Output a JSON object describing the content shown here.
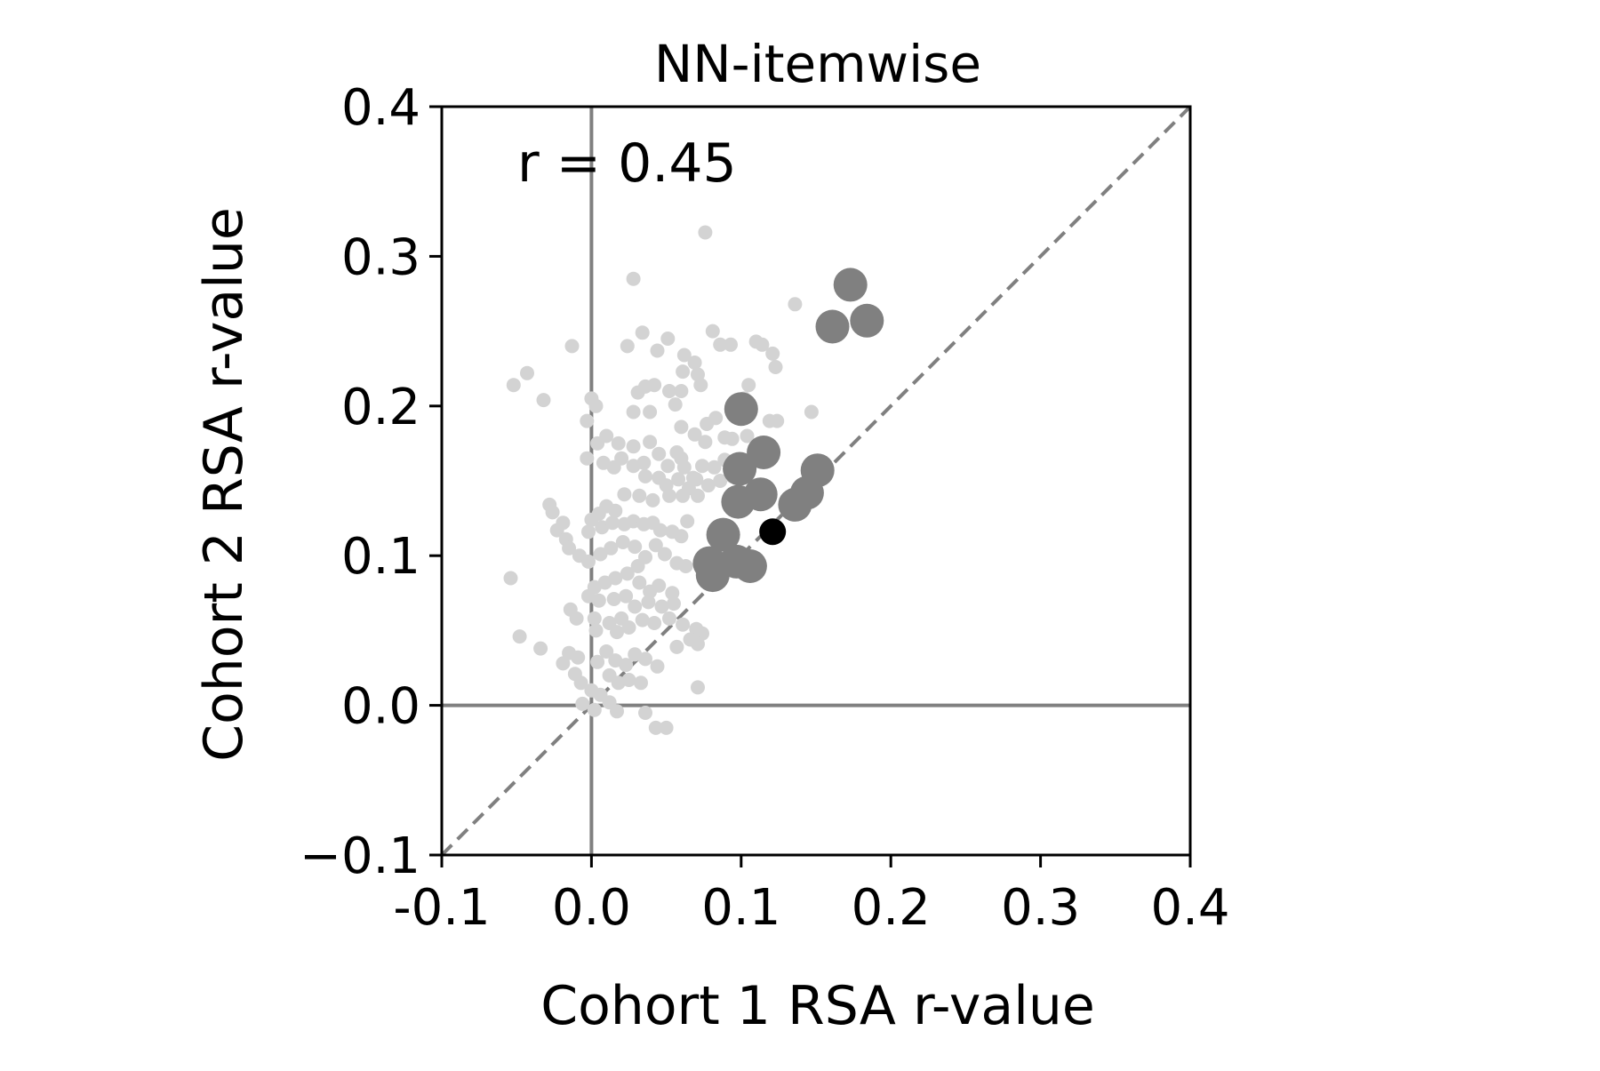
{
  "chart_data": {
    "type": "scatter",
    "title": "NN-itemwise",
    "xlabel": "Cohort 1 RSA r-value",
    "ylabel": "Cohort 2 RSA r-value",
    "xlim": [
      -0.1,
      0.4
    ],
    "ylim": [
      -0.1,
      0.4
    ],
    "x_ticks": [
      "-0.1",
      "0.0",
      "0.1",
      "0.2",
      "0.3",
      "0.4"
    ],
    "y_ticks": [
      "−0.1",
      "0.0",
      "0.1",
      "0.2",
      "0.3",
      "0.4"
    ],
    "annotation": "r = 0.45",
    "grid": false,
    "reference_lines": [
      "x = 0",
      "y = 0",
      "y = x (dashed)"
    ],
    "colors": {
      "background_points": "#d3d3d3",
      "highlight_points": "#808080",
      "focus_point": "#000000",
      "reference_lines": "#808080"
    },
    "series": [
      {
        "color": "#d3d3d3",
        "points": [
          [
            -0.052,
            0.214
          ],
          [
            -0.043,
            0.222
          ],
          [
            -0.032,
            0.204
          ],
          [
            -0.013,
            0.24
          ],
          [
            0.0,
            0.205
          ],
          [
            0.003,
            0.2
          ],
          [
            -0.003,
            0.19
          ],
          [
            0.024,
            0.24
          ],
          [
            0.034,
            0.249
          ],
          [
            0.028,
            0.285
          ],
          [
            0.044,
            0.237
          ],
          [
            0.051,
            0.245
          ],
          [
            0.062,
            0.234
          ],
          [
            0.069,
            0.229
          ],
          [
            0.076,
            0.316
          ],
          [
            0.081,
            0.25
          ],
          [
            0.086,
            0.241
          ],
          [
            0.093,
            0.241
          ],
          [
            0.11,
            0.243
          ],
          [
            0.114,
            0.241
          ],
          [
            0.121,
            0.235
          ],
          [
            0.123,
            0.226
          ],
          [
            0.136,
            0.268
          ],
          [
            0.147,
            0.196
          ],
          [
            0.102,
            0.205
          ],
          [
            0.105,
            0.214
          ],
          [
            0.096,
            0.2
          ],
          [
            0.119,
            0.19
          ],
          [
            0.124,
            0.19
          ],
          [
            0.073,
            0.214
          ],
          [
            0.071,
            0.221
          ],
          [
            0.061,
            0.223
          ],
          [
            0.056,
            0.201
          ],
          [
            0.052,
            0.21
          ],
          [
            0.042,
            0.214
          ],
          [
            0.036,
            0.213
          ],
          [
            0.031,
            0.209
          ],
          [
            0.028,
            0.196
          ],
          [
            0.039,
            0.196
          ],
          [
            0.06,
            0.21
          ],
          [
            0.083,
            0.192
          ],
          [
            0.077,
            0.188
          ],
          [
            0.06,
            0.186
          ],
          [
            0.069,
            0.181
          ],
          [
            0.076,
            0.176
          ],
          [
            0.089,
            0.179
          ],
          [
            0.094,
            0.178
          ],
          [
            0.045,
            0.168
          ],
          [
            0.057,
            0.169
          ],
          [
            0.051,
            0.16
          ],
          [
            0.062,
            0.159
          ],
          [
            0.068,
            0.152
          ],
          [
            0.074,
            0.16
          ],
          [
            0.082,
            0.159
          ],
          [
            0.089,
            0.164
          ],
          [
            0.094,
            0.153
          ],
          [
            0.039,
            0.176
          ],
          [
            0.035,
            0.162
          ],
          [
            0.028,
            0.173
          ],
          [
            0.018,
            0.175
          ],
          [
            0.01,
            0.18
          ],
          [
            0.004,
            0.175
          ],
          [
            -0.003,
            0.165
          ],
          [
            0.008,
            0.162
          ],
          [
            0.015,
            0.159
          ],
          [
            0.02,
            0.165
          ],
          [
            0.028,
            0.16
          ],
          [
            0.036,
            0.153
          ],
          [
            0.045,
            0.152
          ],
          [
            0.05,
            0.147
          ],
          [
            0.058,
            0.151
          ],
          [
            0.065,
            0.145
          ],
          [
            0.07,
            0.151
          ],
          [
            0.078,
            0.147
          ],
          [
            0.086,
            0.15
          ],
          [
            0.071,
            0.14
          ],
          [
            0.061,
            0.14
          ],
          [
            0.052,
            0.14
          ],
          [
            0.041,
            0.137
          ],
          [
            0.032,
            0.14
          ],
          [
            0.022,
            0.141
          ],
          [
            0.016,
            0.13
          ],
          [
            0.01,
            0.133
          ],
          [
            0.005,
            0.128
          ],
          [
            0.0,
            0.124
          ],
          [
            -0.002,
            0.116
          ],
          [
            0.007,
            0.119
          ],
          [
            0.014,
            0.122
          ],
          [
            0.022,
            0.121
          ],
          [
            0.028,
            0.123
          ],
          [
            0.035,
            0.121
          ],
          [
            0.041,
            0.122
          ],
          [
            0.046,
            0.117
          ],
          [
            0.054,
            0.116
          ],
          [
            0.06,
            0.113
          ],
          [
            0.064,
            0.123
          ],
          [
            -0.019,
            0.122
          ],
          [
            -0.026,
            0.129
          ],
          [
            -0.028,
            0.134
          ],
          [
            -0.023,
            0.117
          ],
          [
            -0.017,
            0.111
          ],
          [
            -0.015,
            0.105
          ],
          [
            -0.008,
            0.1
          ],
          [
            -0.002,
            0.096
          ],
          [
            0.006,
            0.101
          ],
          [
            0.013,
            0.105
          ],
          [
            0.021,
            0.109
          ],
          [
            0.029,
            0.106
          ],
          [
            0.036,
            0.099
          ],
          [
            0.043,
            0.107
          ],
          [
            0.049,
            0.101
          ],
          [
            0.057,
            0.095
          ],
          [
            0.063,
            0.093
          ],
          [
            0.031,
            0.093
          ],
          [
            0.024,
            0.088
          ],
          [
            0.016,
            0.085
          ],
          [
            0.009,
            0.082
          ],
          [
            0.002,
            0.079
          ],
          [
            -0.002,
            0.073
          ],
          [
            0.005,
            0.07
          ],
          [
            0.015,
            0.071
          ],
          [
            0.023,
            0.073
          ],
          [
            0.032,
            0.082
          ],
          [
            0.039,
            0.076
          ],
          [
            0.045,
            0.08
          ],
          [
            0.054,
            0.075
          ],
          [
            0.055,
            0.068
          ],
          [
            0.047,
            0.066
          ],
          [
            0.038,
            0.069
          ],
          [
            0.029,
            0.066
          ],
          [
            0.02,
            0.058
          ],
          [
            0.012,
            0.055
          ],
          [
            0.002,
            0.058
          ],
          [
            0.003,
            0.05
          ],
          [
            0.017,
            0.049
          ],
          [
            0.025,
            0.052
          ],
          [
            0.034,
            0.057
          ],
          [
            0.042,
            0.055
          ],
          [
            0.052,
            0.058
          ],
          [
            0.061,
            0.054
          ],
          [
            0.07,
            0.051
          ],
          [
            0.074,
            0.048
          ],
          [
            0.071,
            0.041
          ],
          [
            0.066,
            0.044
          ],
          [
            0.057,
            0.039
          ],
          [
            -0.014,
            0.064
          ],
          [
            -0.01,
            0.058
          ],
          [
            -0.048,
            0.046
          ],
          [
            -0.034,
            0.038
          ],
          [
            -0.015,
            0.035
          ],
          [
            -0.009,
            0.032
          ],
          [
            -0.019,
            0.028
          ],
          [
            -0.011,
            0.021
          ],
          [
            -0.007,
            0.015
          ],
          [
            0.0,
            0.01
          ],
          [
            0.004,
            0.029
          ],
          [
            0.01,
            0.036
          ],
          [
            0.016,
            0.03
          ],
          [
            0.023,
            0.027
          ],
          [
            0.029,
            0.034
          ],
          [
            0.036,
            0.031
          ],
          [
            0.044,
            0.026
          ],
          [
            0.012,
            0.02
          ],
          [
            0.018,
            0.015
          ],
          [
            0.025,
            0.017
          ],
          [
            0.033,
            0.015
          ],
          [
            0.006,
            0.007
          ],
          [
            0.012,
            0.002
          ],
          [
            0.017,
            -0.004
          ],
          [
            0.002,
            -0.003
          ],
          [
            -0.006,
            0.001
          ],
          [
            0.036,
            -0.005
          ],
          [
            0.043,
            -0.015
          ],
          [
            0.05,
            -0.015
          ],
          [
            0.071,
            0.012
          ],
          [
            -0.054,
            0.085
          ],
          [
            0.06,
            0.165
          ],
          [
            0.104,
            0.18
          ]
        ]
      },
      {
        "color": "#808080",
        "points": [
          [
            0.173,
            0.281
          ],
          [
            0.184,
            0.257
          ],
          [
            0.161,
            0.253
          ],
          [
            0.1,
            0.198
          ],
          [
            0.115,
            0.169
          ],
          [
            0.151,
            0.157
          ],
          [
            0.099,
            0.158
          ],
          [
            0.113,
            0.141
          ],
          [
            0.098,
            0.136
          ],
          [
            0.144,
            0.142
          ],
          [
            0.136,
            0.134
          ],
          [
            0.088,
            0.114
          ],
          [
            0.079,
            0.095
          ],
          [
            0.097,
            0.096
          ],
          [
            0.106,
            0.093
          ],
          [
            0.081,
            0.087
          ]
        ]
      },
      {
        "color": "#000000",
        "points": [
          [
            0.121,
            0.116
          ]
        ]
      }
    ]
  }
}
